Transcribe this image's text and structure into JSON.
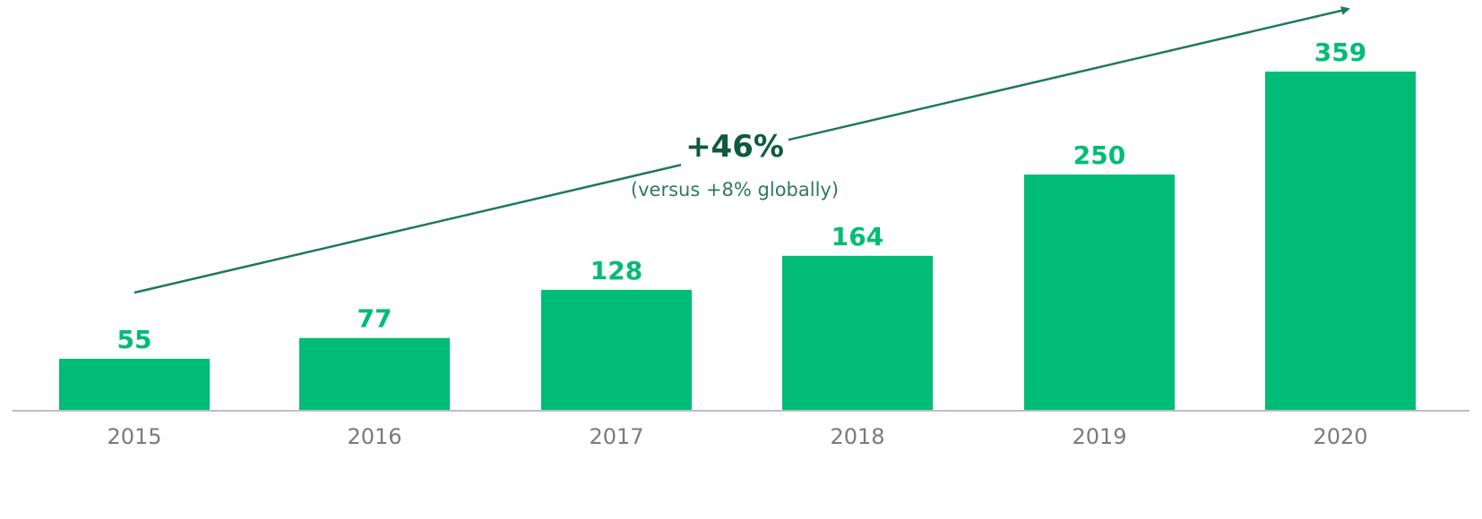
{
  "chart_data": {
    "type": "bar",
    "categories": [
      "2015",
      "2016",
      "2017",
      "2018",
      "2019",
      "2020"
    ],
    "values": [
      55,
      77,
      128,
      164,
      250,
      359
    ],
    "ylim": [
      0,
      359
    ],
    "grid": false,
    "annotations": {
      "growth": "+46%",
      "note": "(versus +8% globally)"
    }
  },
  "colors": {
    "bar": "#00bc77",
    "value_label": "#00bc77",
    "arrow": "#1e7a55",
    "growth_text": "#0f5a3c",
    "note_text": "#2c7a5a",
    "baseline": "#bdbdbd",
    "tick_text": "#7a7a7a"
  }
}
